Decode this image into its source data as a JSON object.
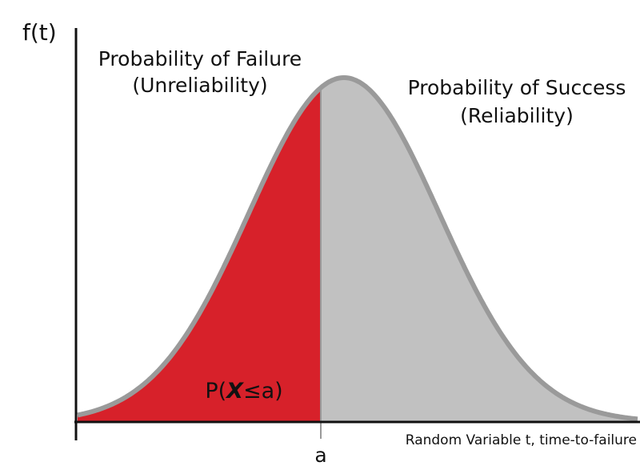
{
  "axis": {
    "y_label": "f(t)",
    "x_label": "Random Variable t, time-to-failure",
    "x_marker": "a"
  },
  "regions": [
    {
      "title": "Probability of Failure",
      "subtitle": "(Unreliability)",
      "formula": [
        "P(",
        "X",
        "≤a)"
      ]
    },
    {
      "title": "Probability of Success",
      "subtitle": "(Reliability)"
    }
  ]
}
